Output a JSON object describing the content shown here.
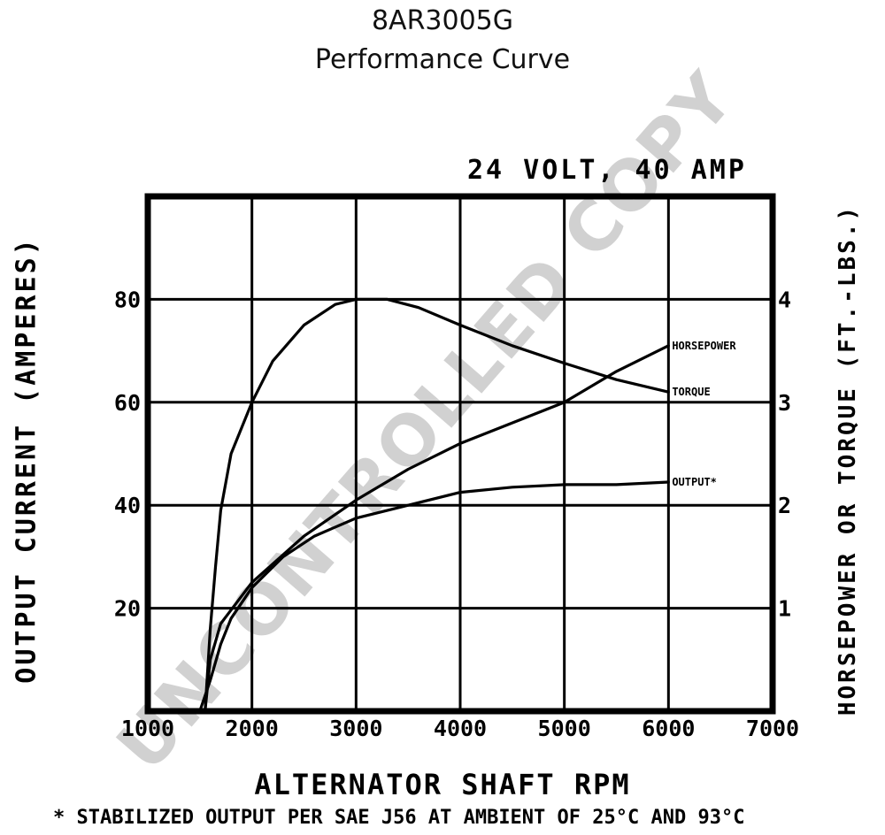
{
  "chart_data": {
    "type": "line",
    "title": "8AR3005G",
    "subtitle": "Performance Curve",
    "rating": "24 VOLT, 40 AMP",
    "xlabel": "ALTERNATOR SHAFT RPM",
    "ylabel": "OUTPUT CURRENT (AMPERES)",
    "y2label": "HORSEPOWER OR TORQUE (FT.-LBS.)",
    "footnote": "* STABILIZED OUTPUT PER SAE J56 AT AMBIENT OF 25°C AND 93°C",
    "watermark": "UNCONTROLLED COPY",
    "xlim": [
      1000,
      7000
    ],
    "ylim": [
      0,
      100
    ],
    "y2lim": [
      0,
      5
    ],
    "grid": true,
    "x_ticks": [
      {
        "value": 1000,
        "label": "1000"
      },
      {
        "value": 2000,
        "label": "2000"
      },
      {
        "value": 3000,
        "label": "3000"
      },
      {
        "value": 4000,
        "label": "4000"
      },
      {
        "value": 5000,
        "label": "5000"
      },
      {
        "value": 6000,
        "label": "6000"
      },
      {
        "value": 7000,
        "label": "7000"
      }
    ],
    "y_ticks": [
      {
        "value": 20,
        "label": "20"
      },
      {
        "value": 40,
        "label": "40"
      },
      {
        "value": 60,
        "label": "60"
      },
      {
        "value": 80,
        "label": "80"
      }
    ],
    "y2_ticks": [
      {
        "value": 1,
        "label": "1"
      },
      {
        "value": 2,
        "label": "2"
      },
      {
        "value": 3,
        "label": "3"
      },
      {
        "value": 4,
        "label": "4"
      }
    ],
    "series": [
      {
        "name": "OUTPUT*",
        "axis": "left",
        "x": [
          1500,
          1600,
          1700,
          1800,
          2000,
          2300,
          2600,
          3000,
          3500,
          4000,
          4500,
          5000,
          5500,
          6000
        ],
        "y": [
          0,
          6,
          13,
          18,
          24,
          30,
          34,
          37.5,
          40,
          42.5,
          43.5,
          44,
          44,
          44.5
        ]
      },
      {
        "name": "HORSEPOWER",
        "axis": "right",
        "x": [
          1550,
          1600,
          1700,
          1850,
          2000,
          2500,
          3000,
          3500,
          4000,
          4500,
          5000,
          5500,
          6000
        ],
        "y": [
          0,
          0.5,
          0.85,
          1.05,
          1.25,
          1.7,
          2.05,
          2.35,
          2.6,
          2.8,
          3.0,
          3.3,
          3.55
        ]
      },
      {
        "name": "TORQUE",
        "axis": "right",
        "x": [
          1550,
          1600,
          1650,
          1700,
          1800,
          2000,
          2200,
          2500,
          2800,
          3000,
          3300,
          3600,
          4000,
          4500,
          5000,
          5500,
          6000
        ],
        "y": [
          0,
          0.8,
          1.4,
          1.95,
          2.5,
          3.0,
          3.4,
          3.75,
          3.95,
          4.0,
          4.0,
          3.92,
          3.75,
          3.55,
          3.38,
          3.22,
          3.1
        ]
      }
    ]
  }
}
